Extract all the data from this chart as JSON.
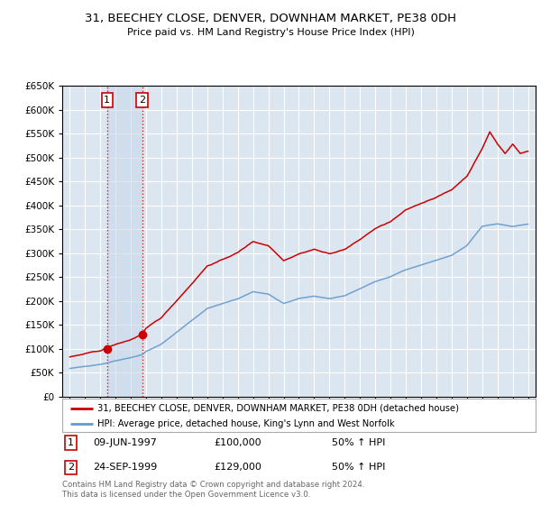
{
  "title": "31, BEECHEY CLOSE, DENVER, DOWNHAM MARKET, PE38 0DH",
  "subtitle": "Price paid vs. HM Land Registry's House Price Index (HPI)",
  "legend_line1": "31, BEECHEY CLOSE, DENVER, DOWNHAM MARKET, PE38 0DH (detached house)",
  "legend_line2": "HPI: Average price, detached house, King's Lynn and West Norfolk",
  "footer": "Contains HM Land Registry data © Crown copyright and database right 2024.\nThis data is licensed under the Open Government Licence v3.0.",
  "sale1_date": "09-JUN-1997",
  "sale1_price": "£100,000",
  "sale1_hpi": "50% ↑ HPI",
  "sale2_date": "24-SEP-1999",
  "sale2_price": "£129,000",
  "sale2_hpi": "50% ↑ HPI",
  "sale1_year": 1997.44,
  "sale2_year": 1999.73,
  "sale1_value": 100000,
  "sale2_value": 129000,
  "red_color": "#cc0000",
  "blue_color": "#6699cc",
  "bg_color": "#dce6f0",
  "grid_color": "#ffffff",
  "ylim": [
    0,
    650000
  ],
  "xlim_start": 1994.5,
  "xlim_end": 2025.5,
  "hpi_points": [
    [
      1995.0,
      58000
    ],
    [
      1996.0,
      62000
    ],
    [
      1997.0,
      67000
    ],
    [
      1997.44,
      70000
    ],
    [
      1998.0,
      75000
    ],
    [
      1999.0,
      82000
    ],
    [
      1999.73,
      88000
    ],
    [
      2000.0,
      95000
    ],
    [
      2001.0,
      110000
    ],
    [
      2002.0,
      135000
    ],
    [
      2003.0,
      160000
    ],
    [
      2004.0,
      185000
    ],
    [
      2005.0,
      195000
    ],
    [
      2006.0,
      205000
    ],
    [
      2007.0,
      220000
    ],
    [
      2008.0,
      215000
    ],
    [
      2009.0,
      195000
    ],
    [
      2010.0,
      205000
    ],
    [
      2011.0,
      210000
    ],
    [
      2012.0,
      205000
    ],
    [
      2013.0,
      210000
    ],
    [
      2014.0,
      225000
    ],
    [
      2015.0,
      240000
    ],
    [
      2016.0,
      250000
    ],
    [
      2017.0,
      265000
    ],
    [
      2018.0,
      275000
    ],
    [
      2019.0,
      285000
    ],
    [
      2020.0,
      295000
    ],
    [
      2021.0,
      315000
    ],
    [
      2022.0,
      355000
    ],
    [
      2023.0,
      360000
    ],
    [
      2024.0,
      355000
    ],
    [
      2025.0,
      360000
    ]
  ],
  "red_points": [
    [
      1995.0,
      82000
    ],
    [
      1996.0,
      88000
    ],
    [
      1997.0,
      94000
    ],
    [
      1997.44,
      100000
    ],
    [
      1998.0,
      107000
    ],
    [
      1999.0,
      117000
    ],
    [
      1999.73,
      129000
    ],
    [
      2000.0,
      140000
    ],
    [
      2001.0,
      162000
    ],
    [
      2002.0,
      198000
    ],
    [
      2003.0,
      235000
    ],
    [
      2004.0,
      272000
    ],
    [
      2005.0,
      285000
    ],
    [
      2006.0,
      300000
    ],
    [
      2007.0,
      323000
    ],
    [
      2008.0,
      315000
    ],
    [
      2009.0,
      285000
    ],
    [
      2010.0,
      300000
    ],
    [
      2011.0,
      310000
    ],
    [
      2012.0,
      300000
    ],
    [
      2013.0,
      310000
    ],
    [
      2014.0,
      330000
    ],
    [
      2015.0,
      353000
    ],
    [
      2016.0,
      367000
    ],
    [
      2017.0,
      390000
    ],
    [
      2018.0,
      404000
    ],
    [
      2019.0,
      418000
    ],
    [
      2020.0,
      433000
    ],
    [
      2021.0,
      462000
    ],
    [
      2022.0,
      520000
    ],
    [
      2022.5,
      555000
    ],
    [
      2023.0,
      530000
    ],
    [
      2023.5,
      510000
    ],
    [
      2024.0,
      530000
    ],
    [
      2024.5,
      510000
    ],
    [
      2025.0,
      515000
    ]
  ]
}
